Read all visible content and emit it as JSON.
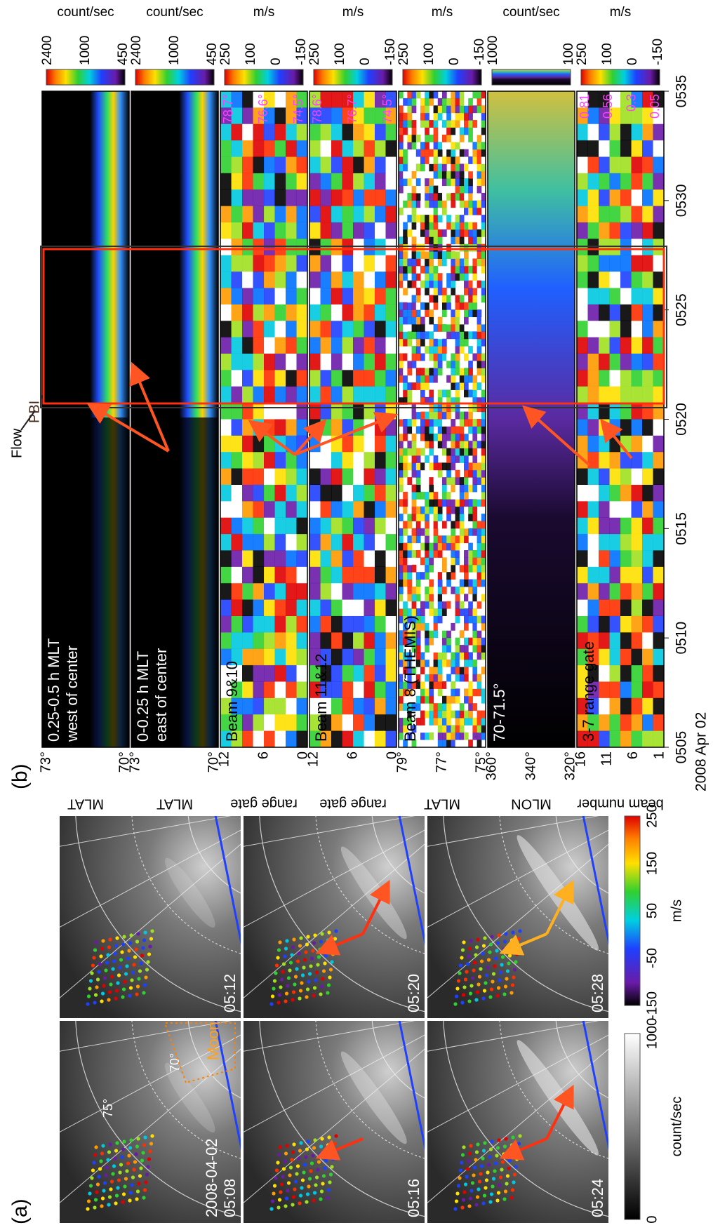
{
  "panel_a": {
    "label": "(a)",
    "date": "2008-04-02",
    "images": [
      "05:08",
      "05:12",
      "05:16",
      "05:20",
      "05:24",
      "05:28"
    ],
    "annotations": [
      "75°",
      "70°",
      "Moon"
    ],
    "colorbars": [
      {
        "unit": "count/sec",
        "ticks": [
          "0",
          "1000"
        ]
      },
      {
        "unit": "m/s",
        "ticks": [
          "-150",
          "-50",
          "50",
          "150",
          "250"
        ]
      }
    ]
  },
  "panel_b": {
    "label": "(b)",
    "annotations": [
      "Flow",
      "PBI"
    ],
    "rows": [
      {
        "ylabel": "MLAT",
        "yticks": [
          "73°",
          "70°"
        ],
        "text": [
          "0.25-0.5 h MLT",
          "west of center"
        ],
        "colorbar": [
          "2400",
          "1000",
          "450"
        ],
        "unit": "count/sec"
      },
      {
        "ylabel": "MLAT",
        "yticks": [
          "73°",
          "70°"
        ],
        "text": [
          "0-0.25 h MLT",
          "east of center"
        ],
        "colorbar": [
          "2400",
          "1000",
          "450"
        ],
        "unit": "count/sec"
      },
      {
        "ylabel": "range gate",
        "yticks": [
          "12",
          "6",
          "0"
        ],
        "text": [
          "Beam 9&10"
        ],
        "colorbar": [
          "250",
          "100",
          "0",
          "-150"
        ],
        "unit": "m/s",
        "overlay": [
          "78.7°",
          "76.6°",
          "74.5°"
        ]
      },
      {
        "ylabel": "range gate",
        "yticks": [
          "12",
          "6",
          "0"
        ],
        "text": [
          "Beam 11&12"
        ],
        "colorbar": [
          "250",
          "100",
          "0",
          "-150"
        ],
        "unit": "m/s",
        "overlay": [
          "78.6°",
          "76.7°",
          "74.5°"
        ]
      },
      {
        "ylabel": "MLAT",
        "yticks": [
          "79°",
          "77°",
          "75°"
        ],
        "text": [
          "Beam 8 (THEMIS)"
        ],
        "colorbar": [
          "250",
          "100",
          "0",
          "-150"
        ],
        "unit": "m/s"
      },
      {
        "ylabel": "MLON",
        "yticks": [
          "360°",
          "340°",
          "320°"
        ],
        "text": [
          "70-71.5°"
        ],
        "colorbar": [
          "1000",
          "100"
        ],
        "unit": "count/sec"
      },
      {
        "ylabel": "beam number",
        "yticks": [
          "16",
          "11",
          "6",
          "1"
        ],
        "text": [
          "3-7 range gate"
        ],
        "colorbar": [
          "250",
          "100",
          "0",
          "-150"
        ],
        "unit": "m/s",
        "overlay": [
          "0.81",
          "0.56",
          "0.3",
          "0.05"
        ]
      }
    ],
    "xticks": [
      "0505",
      "0510",
      "0515",
      "0520",
      "0525",
      "0530",
      "0535"
    ],
    "xlabel": "2008 Apr 02"
  }
}
